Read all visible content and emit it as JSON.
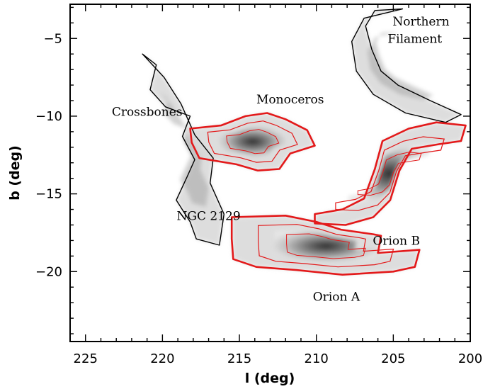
{
  "chart_data": {
    "type": "contour",
    "xlabel": "l (deg)",
    "ylabel": "b (deg)",
    "xlim": [
      226,
      200
    ],
    "ylim": [
      -24.5,
      -2.8
    ],
    "x_ticks": [
      225,
      220,
      215,
      210,
      205,
      200
    ],
    "y_ticks": [
      -5,
      -10,
      -15,
      -20
    ],
    "grid": false,
    "colors": {
      "low_contour": "#000000",
      "high_contour": "#e3191a",
      "emission_light": "#d8d8d8",
      "emission_dark": "#111111"
    },
    "annotations": [
      {
        "text": "Northern",
        "l": 203.2,
        "b": -3.9
      },
      {
        "text": "Filament",
        "l": 203.6,
        "b": -5.0
      },
      {
        "text": "Monoceros",
        "l": 211.7,
        "b": -8.9
      },
      {
        "text": "Crossbones",
        "l": 221.0,
        "b": -9.7
      },
      {
        "text": "NGC 2129",
        "l": 217.0,
        "b": -16.4
      },
      {
        "text": "Orion B",
        "l": 204.8,
        "b": -18.0
      },
      {
        "text": "Orion A",
        "l": 208.7,
        "b": -21.6
      }
    ],
    "series": [
      {
        "level": "outer",
        "color": "#000000",
        "points": [
          [
            204.4,
            -3.1
          ],
          [
            206.2,
            -3.2
          ],
          [
            206.8,
            -4.2
          ],
          [
            206.4,
            -5.7
          ],
          [
            205.8,
            -7.1
          ],
          [
            204.7,
            -8.0
          ],
          [
            202.6,
            -9.0
          ],
          [
            200.6,
            -9.9
          ],
          [
            201.6,
            -10.4
          ],
          [
            204.2,
            -9.8
          ],
          [
            206.3,
            -8.6
          ],
          [
            207.4,
            -7.1
          ],
          [
            207.7,
            -5.2
          ],
          [
            206.9,
            -3.7
          ]
        ]
      },
      {
        "level": "outer",
        "color": "#000000",
        "points": [
          [
            221.3,
            -6.0
          ],
          [
            220.4,
            -6.7
          ],
          [
            220.8,
            -8.3
          ],
          [
            219.8,
            -9.4
          ],
          [
            218.2,
            -10.0
          ],
          [
            218.7,
            -11.3
          ],
          [
            217.9,
            -12.8
          ],
          [
            218.4,
            -13.9
          ],
          [
            219.1,
            -15.4
          ],
          [
            218.2,
            -16.8
          ],
          [
            217.8,
            -17.9
          ],
          [
            216.3,
            -18.3
          ],
          [
            216.0,
            -16.3
          ],
          [
            216.9,
            -14.3
          ],
          [
            216.7,
            -12.7
          ],
          [
            217.9,
            -11.2
          ],
          [
            218.8,
            -9.2
          ],
          [
            219.9,
            -7.5
          ]
        ]
      },
      {
        "level": "cloud",
        "color": "#e3191a",
        "name": "Monoceros",
        "points": [
          [
            218.2,
            -10.8
          ],
          [
            216.2,
            -10.6
          ],
          [
            214.6,
            -10.0
          ],
          [
            213.2,
            -9.8
          ],
          [
            212.0,
            -10.2
          ],
          [
            210.6,
            -10.9
          ],
          [
            210.1,
            -11.9
          ],
          [
            211.7,
            -12.4
          ],
          [
            212.4,
            -13.4
          ],
          [
            213.8,
            -13.5
          ],
          [
            215.2,
            -13.1
          ],
          [
            217.6,
            -12.7
          ],
          [
            218.1,
            -11.7
          ]
        ]
      },
      {
        "level": "cloud",
        "color": "#e3191a",
        "name": "Orion A",
        "points": [
          [
            215.5,
            -16.5
          ],
          [
            212.0,
            -16.4
          ],
          [
            210.0,
            -16.8
          ],
          [
            208.4,
            -17.3
          ],
          [
            206.3,
            -17.6
          ],
          [
            205.8,
            -17.7
          ],
          [
            206.0,
            -18.8
          ],
          [
            203.3,
            -18.6
          ],
          [
            203.6,
            -19.7
          ],
          [
            205.0,
            -20.0
          ],
          [
            208.3,
            -20.2
          ],
          [
            211.3,
            -19.9
          ],
          [
            213.9,
            -19.7
          ],
          [
            215.4,
            -19.2
          ],
          [
            215.5,
            -17.9
          ]
        ]
      },
      {
        "level": "cloud",
        "color": "#e3191a",
        "name": "Orion B",
        "points": [
          [
            210.1,
            -16.3
          ],
          [
            208.3,
            -16.0
          ],
          [
            206.9,
            -15.3
          ],
          [
            206.2,
            -13.4
          ],
          [
            205.7,
            -11.6
          ],
          [
            204.0,
            -10.8
          ],
          [
            202.2,
            -10.4
          ],
          [
            200.3,
            -10.6
          ],
          [
            200.6,
            -11.6
          ],
          [
            202.0,
            -11.8
          ],
          [
            203.8,
            -12.1
          ],
          [
            204.6,
            -13.5
          ],
          [
            205.2,
            -15.4
          ],
          [
            206.3,
            -16.5
          ],
          [
            208.1,
            -17.0
          ],
          [
            210.1,
            -16.9
          ]
        ]
      }
    ]
  }
}
